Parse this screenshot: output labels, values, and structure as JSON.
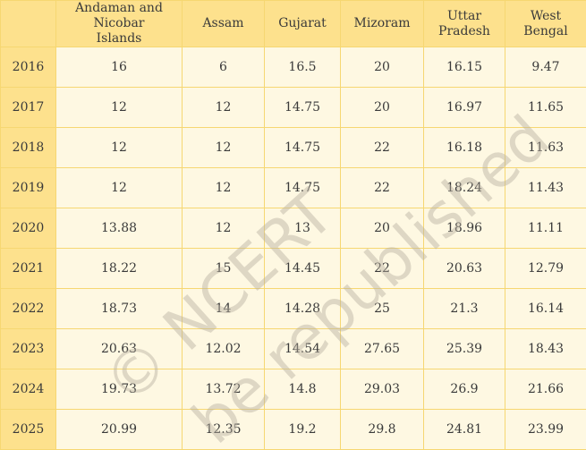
{
  "table": {
    "header": [
      "",
      "Andaman and Nicobar Islands",
      "Assam",
      "Gujarat",
      "Mizoram",
      "Uttar Pradesh",
      "West Bengal"
    ],
    "rows": [
      [
        2016,
        16,
        6,
        16.5,
        20,
        16.15,
        9.47
      ],
      [
        2017,
        12,
        12,
        14.75,
        20,
        16.97,
        11.65
      ],
      [
        2018,
        12,
        12,
        14.75,
        22,
        16.18,
        11.63
      ],
      [
        2019,
        12,
        12,
        14.75,
        22,
        18.24,
        11.43
      ],
      [
        2020,
        13.88,
        12,
        13,
        20,
        18.96,
        11.11
      ],
      [
        2021,
        18.22,
        15,
        14.45,
        22,
        20.63,
        12.79
      ],
      [
        2022,
        18.73,
        14,
        14.28,
        25,
        21.3,
        16.14
      ],
      [
        2023,
        20.63,
        12.02,
        14.54,
        27.65,
        25.39,
        18.43
      ],
      [
        2024,
        19.73,
        13.72,
        14.8,
        29.03,
        26.9,
        21.66
      ],
      [
        2025,
        20.99,
        12.35,
        19.2,
        29.8,
        24.81,
        23.99
      ]
    ]
  },
  "watermark": [
    "© NCERT",
    "be republished"
  ]
}
